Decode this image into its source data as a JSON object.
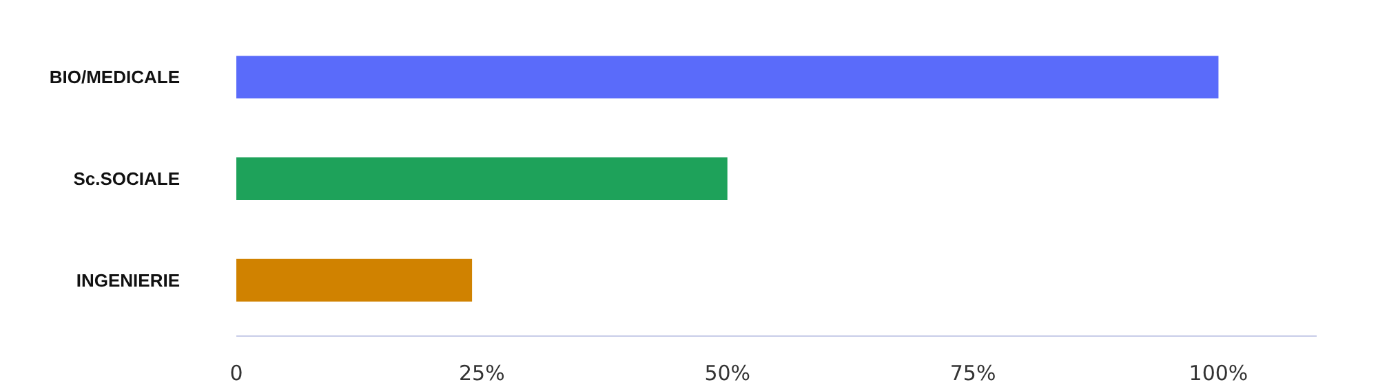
{
  "chart_data": {
    "type": "bar",
    "orientation": "horizontal",
    "categories": [
      "BIO/MEDICALE",
      "Sc.SOCIALE",
      "INGENIERIE"
    ],
    "values": [
      100,
      50,
      24
    ],
    "colors": [
      "#5a6bfa",
      "#1ea25a",
      "#d08200"
    ],
    "xlim": [
      0,
      110
    ],
    "xticks": [
      0,
      {
        "value": 25,
        "label": "25%"
      },
      {
        "value": 50,
        "label": "50%"
      },
      {
        "value": 75,
        "label": "75%"
      },
      {
        "value": 100,
        "label": "100%"
      }
    ],
    "grid": false
  }
}
